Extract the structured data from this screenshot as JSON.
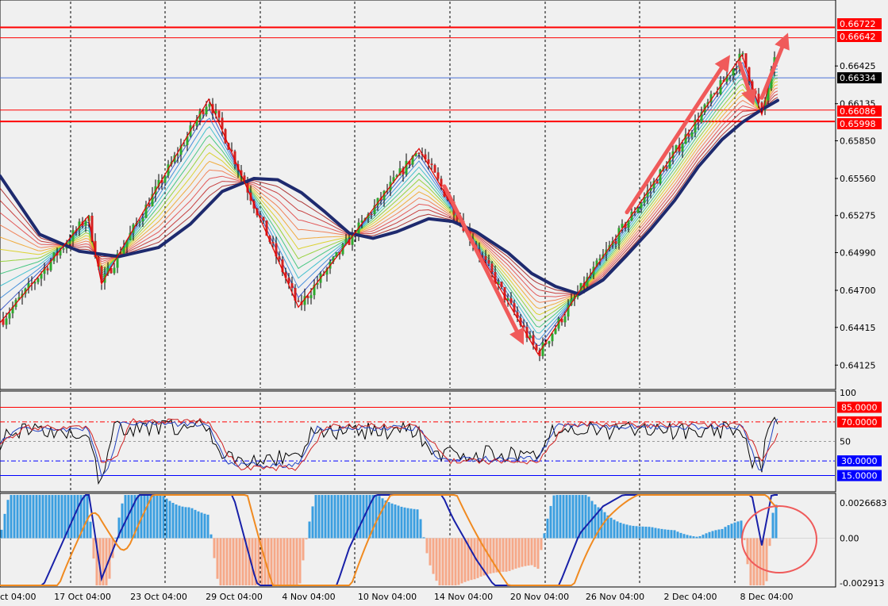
{
  "chart_data": [
    {
      "type": "candlestick",
      "panel": "price",
      "price_axis_ticks": [
        0.66425,
        0.66135,
        0.6585,
        0.6556,
        0.65275,
        0.6499,
        0.647,
        0.64415,
        0.64125
      ],
      "ylim": [
        0.6395,
        0.6692
      ],
      "horizontal_lines": [
        {
          "label": "0.66722",
          "value": 0.66722,
          "color": "#ff0000"
        },
        {
          "label": "0.66642",
          "value": 0.66642,
          "color": "#ff0000"
        },
        {
          "label": "0.66334",
          "value": 0.66334,
          "color": "#000000"
        },
        {
          "label": "0.66086",
          "value": 0.66086,
          "color": "#ff0000"
        },
        {
          "label": "0.65998",
          "value": 0.65998,
          "color": "#ff0000"
        }
      ],
      "zigzag_pivots": [
        [
          0,
          0.6445
        ],
        [
          111,
          0.6527
        ],
        [
          128,
          0.6475
        ],
        [
          263,
          0.6617
        ],
        [
          376,
          0.6457
        ],
        [
          528,
          0.6579
        ],
        [
          678,
          0.6421
        ],
        [
          733,
          0.6472
        ],
        [
          935,
          0.6651
        ],
        [
          960,
          0.6605
        ],
        [
          975,
          0.6645
        ]
      ],
      "ma_path": [
        [
          0,
          0.6558
        ],
        [
          50,
          0.6513
        ],
        [
          100,
          0.65
        ],
        [
          150,
          0.6496
        ],
        [
          200,
          0.6503
        ],
        [
          240,
          0.6521
        ],
        [
          280,
          0.6546
        ],
        [
          320,
          0.6556
        ],
        [
          350,
          0.6555
        ],
        [
          380,
          0.6545
        ],
        [
          410,
          0.653
        ],
        [
          440,
          0.6514
        ],
        [
          470,
          0.651
        ],
        [
          500,
          0.6515
        ],
        [
          540,
          0.6525
        ],
        [
          570,
          0.6523
        ],
        [
          600,
          0.6515
        ],
        [
          640,
          0.6499
        ],
        [
          670,
          0.6483
        ],
        [
          700,
          0.6473
        ],
        [
          730,
          0.6467
        ],
        [
          760,
          0.6478
        ],
        [
          790,
          0.6497
        ],
        [
          820,
          0.6517
        ],
        [
          850,
          0.6539
        ],
        [
          880,
          0.6565
        ],
        [
          910,
          0.6586
        ],
        [
          935,
          0.6599
        ],
        [
          960,
          0.6609
        ],
        [
          980,
          0.6616
        ]
      ],
      "arrows": [
        [
          [
            560,
            0.655
          ],
          [
            660,
            0.6428
          ]
        ],
        [
          [
            790,
            0.653
          ],
          [
            920,
            0.6651
          ]
        ],
        [
          [
            932,
            0.6645
          ],
          [
            950,
            0.6612
          ]
        ],
        [
          [
            960,
            0.6618
          ],
          [
            993,
            0.6668
          ]
        ]
      ],
      "x_labels": [
        "ct 04:00",
        "17 Oct 04:00",
        "23 Oct 04:00",
        "29 Oct 04:00",
        "4 Nov 04:00",
        "10 Nov 04:00",
        "14 Nov 04:00",
        "20 Nov 04:00",
        "26 Nov 04:00",
        "2 Dec 04:00",
        "8 Dec 04:00"
      ]
    },
    {
      "type": "line",
      "panel": "oscillator",
      "ylim": [
        0,
        100
      ],
      "axis_labels": [
        "100",
        "50"
      ],
      "levels": [
        {
          "label": "85.0000",
          "value": 85,
          "color": "#ff0000"
        },
        {
          "label": "70.0000",
          "value": 70,
          "color": "#ff0000"
        },
        {
          "label": "30.0000",
          "value": 30,
          "color": "#0000ff"
        },
        {
          "label": "15.0000",
          "value": 15,
          "color": "#0000ff"
        }
      ]
    },
    {
      "type": "bar",
      "panel": "macd",
      "ylim": [
        -0.002913,
        0.0026683
      ],
      "axis_labels": [
        "0.0026683",
        "0.00",
        "-0.002913"
      ]
    }
  ]
}
